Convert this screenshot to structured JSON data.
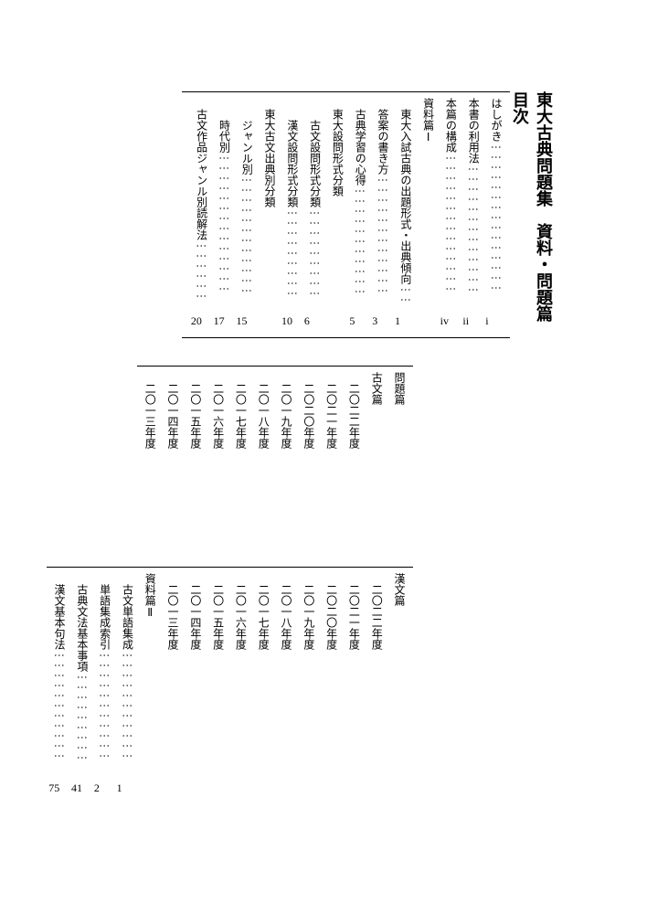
{
  "title_parts": [
    "東大古典問題集",
    "資料・問題篇",
    "目次"
  ],
  "section1": {
    "items": [
      {
        "label": "はしがき",
        "page": "i",
        "cls": ""
      },
      {
        "label": "本書の利用法",
        "page": "ii",
        "cls": ""
      },
      {
        "label": "本篇の構成",
        "page": "iv",
        "cls": ""
      },
      {
        "label": "資料篇Ⅰ",
        "page": "",
        "cls": "heading"
      },
      {
        "label": "東大入試古典の出題形式・出典傾向",
        "page": "1",
        "cls": "indent"
      },
      {
        "label": "答案の書き方",
        "page": "3",
        "cls": "indent"
      },
      {
        "label": "古典学習の心得",
        "page": "5",
        "cls": "indent"
      },
      {
        "label": "東大設問形式分類",
        "page": "",
        "cls": "indent"
      },
      {
        "label": "古文設問形式分類",
        "page": "6",
        "cls": "indent2"
      },
      {
        "label": "漢文設問形式分類",
        "page": "10",
        "cls": "indent2"
      },
      {
        "label": "東大古文出典別分類",
        "page": "",
        "cls": "indent"
      },
      {
        "label": "ジャンル別",
        "page": "15",
        "cls": "indent2"
      },
      {
        "label": "時代別",
        "page": "17",
        "cls": "indent2"
      },
      {
        "label": "古文作品ジャンル別読解法",
        "page": "20",
        "cls": "indent"
      }
    ]
  },
  "section2": {
    "items": [
      {
        "label": "問題篇",
        "page": "",
        "cls": "heading"
      },
      {
        "label": "古文篇",
        "page": "",
        "cls": ""
      },
      {
        "label": "二〇二二年度",
        "page": "",
        "cls": "indent"
      },
      {
        "label": "二〇二一年度",
        "page": "",
        "cls": "indent"
      },
      {
        "label": "二〇二〇年度",
        "page": "",
        "cls": "indent"
      },
      {
        "label": "二〇一九年度",
        "page": "",
        "cls": "indent"
      },
      {
        "label": "二〇一八年度",
        "page": "",
        "cls": "indent"
      },
      {
        "label": "二〇一七年度",
        "page": "",
        "cls": "indent"
      },
      {
        "label": "二〇一六年度",
        "page": "",
        "cls": "indent"
      },
      {
        "label": "二〇一五年度",
        "page": "",
        "cls": "indent"
      },
      {
        "label": "二〇一四年度",
        "page": "",
        "cls": "indent"
      },
      {
        "label": "二〇一三年度",
        "page": "",
        "cls": "indent"
      }
    ]
  },
  "section3": {
    "items": [
      {
        "label": "漢文篇",
        "page": "",
        "cls": ""
      },
      {
        "label": "二〇二二年度",
        "page": "",
        "cls": "indent"
      },
      {
        "label": "二〇二一年度",
        "page": "",
        "cls": "indent"
      },
      {
        "label": "二〇二〇年度",
        "page": "",
        "cls": "indent"
      },
      {
        "label": "二〇一九年度",
        "page": "",
        "cls": "indent"
      },
      {
        "label": "二〇一八年度",
        "page": "",
        "cls": "indent"
      },
      {
        "label": "二〇一七年度",
        "page": "",
        "cls": "indent"
      },
      {
        "label": "二〇一六年度",
        "page": "",
        "cls": "indent"
      },
      {
        "label": "二〇一五年度",
        "page": "",
        "cls": "indent"
      },
      {
        "label": "二〇一四年度",
        "page": "",
        "cls": "indent"
      },
      {
        "label": "二〇一三年度",
        "page": "",
        "cls": "indent"
      },
      {
        "label": "資料篇Ⅱ",
        "page": "",
        "cls": "heading"
      },
      {
        "label": "古文単語集成",
        "page": "1",
        "cls": "indent"
      },
      {
        "label": "単語集成索引",
        "page": "2",
        "cls": "indent"
      },
      {
        "label": "古典文法基本事項",
        "page": "41",
        "cls": "indent"
      },
      {
        "label": "漢文基本句法",
        "page": "75",
        "cls": "indent"
      }
    ]
  }
}
